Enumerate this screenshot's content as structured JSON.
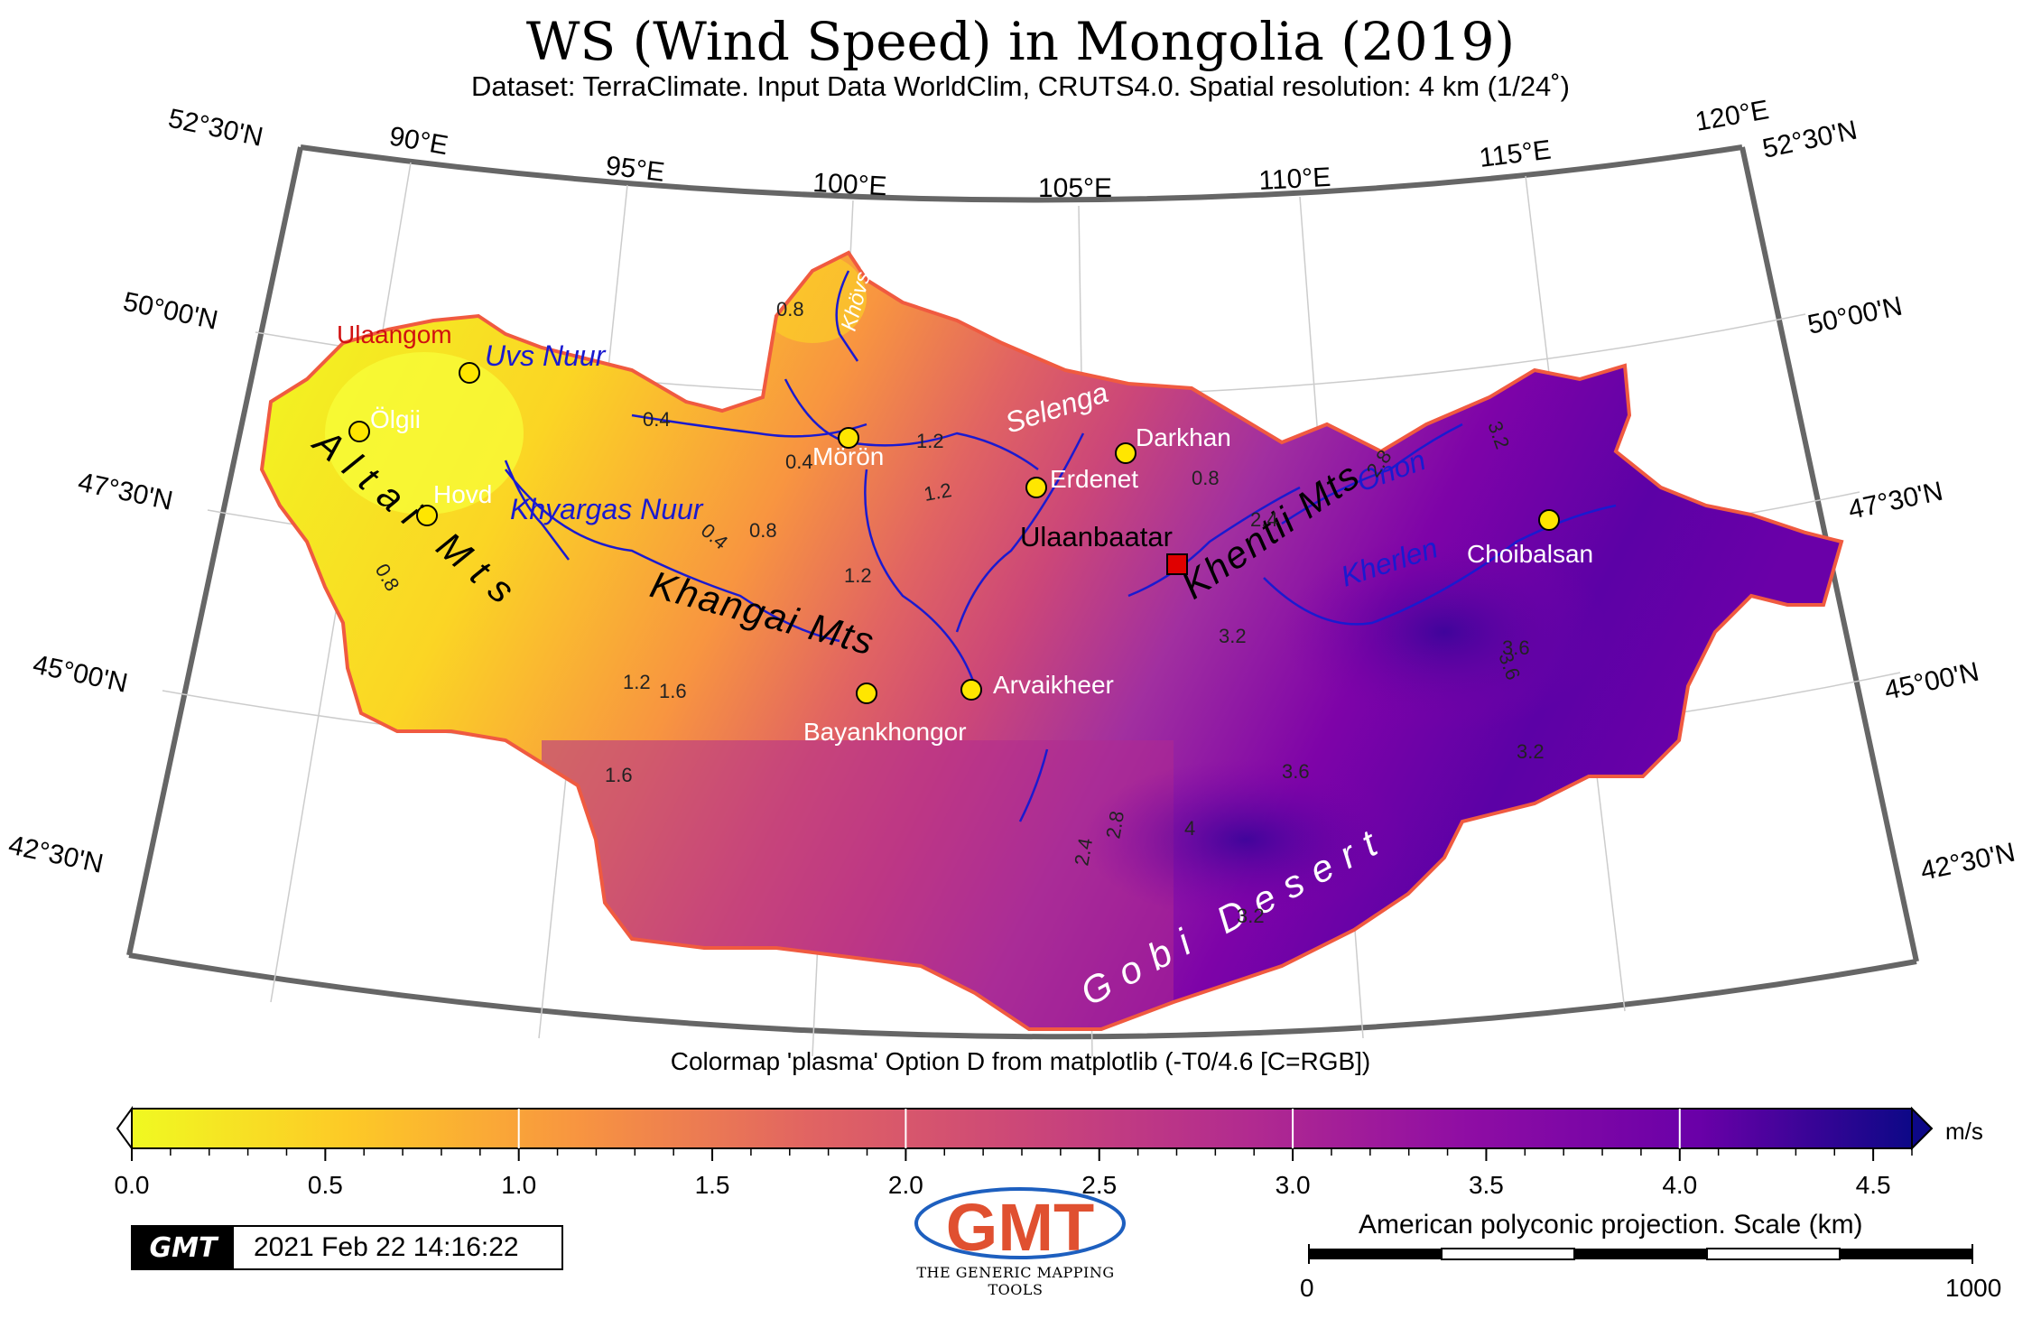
{
  "header": {
    "title": "WS (Wind Speed) in Mongolia (2019)",
    "subtitle": "Dataset: TerraClimate. Input Data WorldClim, CRUTS4.0. Spatial resolution: 4 km (1/24˚)"
  },
  "map": {
    "graticule": {
      "longitude_labels": [
        "90°E",
        "95°E",
        "100°E",
        "105°E",
        "110°E",
        "115°E",
        "120°E"
      ],
      "latitude_labels_left": [
        "52°30'N",
        "50°00'N",
        "47°30'N",
        "45°00'N",
        "42°30'N"
      ],
      "latitude_labels_right": [
        "52°30'N",
        "50°00'N",
        "47°30'N",
        "45°00'N",
        "42°30'N"
      ]
    },
    "cities": [
      {
        "name": "Ulaangom",
        "color": "#d01010"
      },
      {
        "name": "Ölgii",
        "color": "#ffffff"
      },
      {
        "name": "Hovd",
        "color": "#ffffff"
      },
      {
        "name": "Mörön",
        "color": "#ffffff"
      },
      {
        "name": "Erdenet",
        "color": "#ffffff"
      },
      {
        "name": "Darkhan",
        "color": "#ffffff"
      },
      {
        "name": "Ulaanbaatar",
        "color": "#000000"
      },
      {
        "name": "Choibalsan",
        "color": "#ffffff"
      },
      {
        "name": "Bayankhongor",
        "color": "#ffffff"
      },
      {
        "name": "Arvaikheer",
        "color": "#ffffff"
      }
    ],
    "water_labels": [
      "Uvs Nuur",
      "Khyargas Nuur",
      "Selenga",
      "Onon",
      "Kherlen",
      "Khövsgöl"
    ],
    "region_labels": [
      "Altai Mts",
      "Khangai Mts",
      "Khentii Mts",
      "Gobi Desert"
    ],
    "contour_labels": [
      "0.4",
      "0.4",
      "0.4",
      "0.8",
      "0.8",
      "0.8",
      "0.8",
      "1.2",
      "1.2",
      "1.2",
      "1.2",
      "1.6",
      "1.6",
      "2.4",
      "2.4",
      "2.8",
      "2.8",
      "3.2",
      "3.2",
      "3.2",
      "3.2",
      "3.6",
      "3.6",
      "3.6",
      "4"
    ]
  },
  "colorbar": {
    "title": "Colormap 'plasma' Option D from matplotlib (-T0/4.6 [C=RGB])",
    "unit": "m/s",
    "range": [
      0,
      4.6
    ],
    "ticks": [
      "0.0",
      "0.5",
      "1.0",
      "1.5",
      "2.0",
      "2.5",
      "3.0",
      "3.5",
      "4.0",
      "4.5"
    ],
    "colors": [
      "#f0f921",
      "#f89540",
      "#cc4778",
      "#7e03a8",
      "#0d0887"
    ]
  },
  "footer": {
    "gmt_stamp_logo": "GMT",
    "timestamp": "2021 Feb 22 14:16:22",
    "gmt_logo_text": "THE GENERIC MAPPING TOOLS",
    "scale_title": "American polyconic projection. Scale (km)",
    "scale_min": "0",
    "scale_max": "1000"
  }
}
